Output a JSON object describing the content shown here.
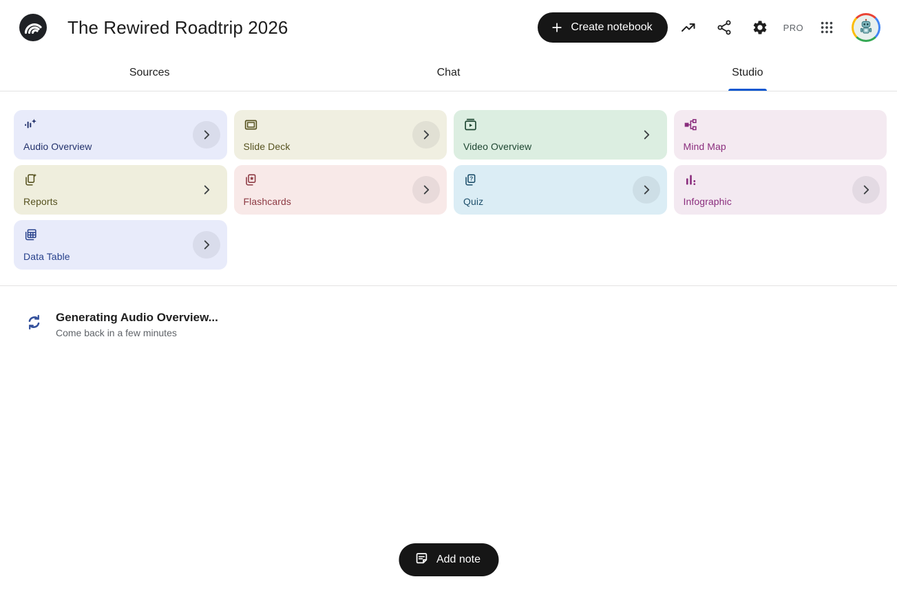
{
  "header": {
    "notebook_title": "The Rewired Roadtrip 2026",
    "create_notebook_label": "Create notebook",
    "pro_badge": "PRO"
  },
  "tabs": [
    {
      "label": "Sources",
      "active": false
    },
    {
      "label": "Chat",
      "active": false
    },
    {
      "label": "Studio",
      "active": true
    }
  ],
  "colors": {
    "accent_blue": "#0b57d0",
    "button_black": "#161616",
    "sync_icon_blue": "#34519c",
    "divider": "#e3e2e2"
  },
  "studio": {
    "cards": [
      {
        "label": "Audio Overview",
        "icon": "audio-waveform-sparkle-icon",
        "bg": "#e8ebfa",
        "fg": "#21306b",
        "chevron": "circle"
      },
      {
        "label": "Slide Deck",
        "icon": "slide-frame-icon",
        "bg": "#f0efe1",
        "fg": "#56521f",
        "chevron": "circle"
      },
      {
        "label": "Video Overview",
        "icon": "video-clapper-play-icon",
        "bg": "#dceee1",
        "fg": "#1d4631",
        "chevron": "plain"
      },
      {
        "label": "Mind Map",
        "icon": "mind-map-nodes-icon",
        "bg": "#f4eaf1",
        "fg": "#8a2d7d",
        "chevron": "none"
      },
      {
        "label": "Reports",
        "icon": "report-pages-sparkle-icon",
        "bg": "#efeedd",
        "fg": "#56521f",
        "chevron": "plain"
      },
      {
        "label": "Flashcards",
        "icon": "flashcards-star-icon",
        "bg": "#f8e9e8",
        "fg": "#8d3a43",
        "chevron": "circle"
      },
      {
        "label": "Quiz",
        "icon": "quiz-question-cards-icon",
        "bg": "#dbedf5",
        "fg": "#1d4f6b",
        "chevron": "circle"
      },
      {
        "label": "Infographic",
        "icon": "bar-chart-icon",
        "bg": "#f3e9f1",
        "fg": "#8a2d7d",
        "chevron": "circle"
      },
      {
        "label": "Data Table",
        "icon": "data-table-grid-icon",
        "bg": "#e8ebfa",
        "fg": "#27418c",
        "chevron": "circle"
      }
    ]
  },
  "status": {
    "title": "Generating Audio Overview...",
    "subtitle": "Come back in a few minutes"
  },
  "footer": {
    "add_note_label": "Add note"
  }
}
